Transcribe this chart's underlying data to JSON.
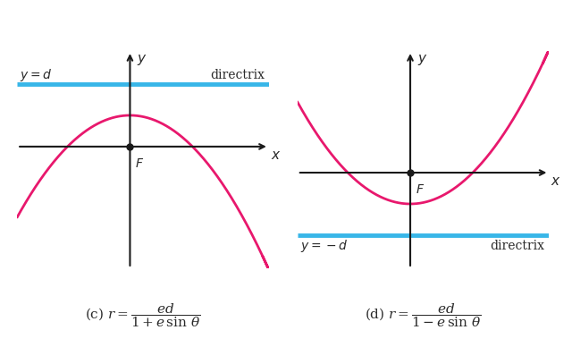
{
  "bg_color": "#ffffff",
  "curve_color": "#e8186d",
  "directrix_color": "#38b6e8",
  "axis_color": "#1a1a1a",
  "focus_color": "#1a1a1a",
  "text_color": "#2a2a2a",
  "panel_c": {
    "xlim": [
      -1.3,
      1.6
    ],
    "ylim": [
      -1.4,
      1.1
    ],
    "focus_x": 0.0,
    "focus_y": 0.0,
    "directrix_y": 0.72,
    "directrix_label": "$y = d$",
    "directrix_side": "top",
    "formula_c": "(c) $r = $",
    "x_label": "$x$",
    "y_label": "$y$",
    "F_label": "$F$"
  },
  "panel_d": {
    "xlim": [
      -1.3,
      1.6
    ],
    "ylim": [
      -1.1,
      1.4
    ],
    "focus_x": 0.0,
    "focus_y": 0.0,
    "directrix_y": -0.72,
    "directrix_label": "$y = -d$",
    "directrix_side": "bottom",
    "formula_d": "(d) $r = $",
    "x_label": "$x$",
    "y_label": "$y$",
    "F_label": "$F$"
  }
}
